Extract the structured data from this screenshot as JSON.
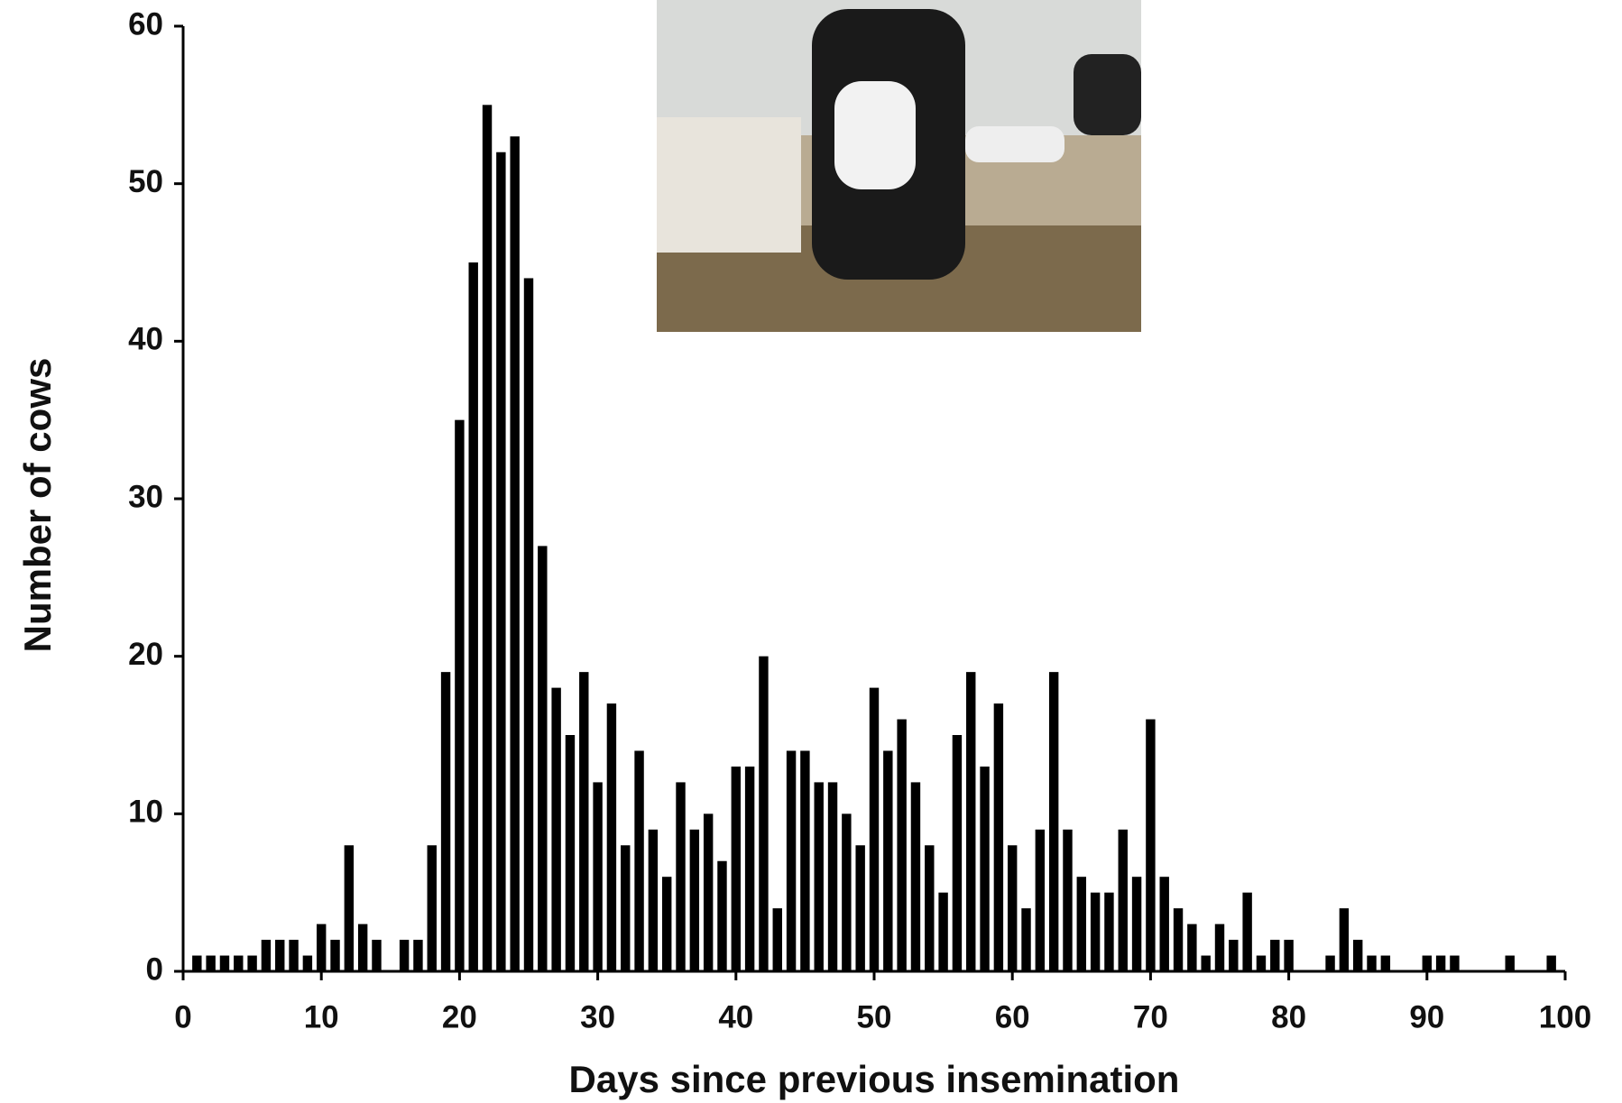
{
  "chart_data": {
    "type": "bar",
    "x_label": "Days since previous insemination",
    "y_label": "Number of cows",
    "x": [
      1,
      2,
      3,
      4,
      5,
      6,
      7,
      8,
      9,
      10,
      11,
      12,
      13,
      14,
      15,
      16,
      17,
      18,
      19,
      20,
      21,
      22,
      23,
      24,
      25,
      26,
      27,
      28,
      29,
      30,
      31,
      32,
      33,
      34,
      35,
      36,
      37,
      38,
      39,
      40,
      41,
      42,
      43,
      44,
      45,
      46,
      47,
      48,
      49,
      50,
      51,
      52,
      53,
      54,
      55,
      56,
      57,
      58,
      59,
      60,
      61,
      62,
      63,
      64,
      65,
      66,
      67,
      68,
      69,
      70,
      71,
      72,
      73,
      74,
      75,
      76,
      77,
      78,
      79,
      80,
      81,
      82,
      83,
      84,
      85,
      86,
      87,
      88,
      89,
      90,
      91,
      92,
      93,
      94,
      95,
      96,
      97,
      98,
      99
    ],
    "values": [
      1,
      1,
      1,
      1,
      1,
      2,
      2,
      2,
      1,
      3,
      2,
      8,
      3,
      2,
      0,
      2,
      2,
      8,
      19,
      35,
      45,
      55,
      52,
      53,
      44,
      27,
      18,
      15,
      19,
      12,
      17,
      8,
      14,
      9,
      6,
      12,
      9,
      10,
      7,
      13,
      13,
      20,
      4,
      14,
      14,
      12,
      12,
      10,
      8,
      18,
      14,
      16,
      12,
      8,
      5,
      15,
      19,
      13,
      17,
      8,
      4,
      9,
      19,
      9,
      6,
      5,
      5,
      9,
      6,
      16,
      6,
      4,
      3,
      1,
      3,
      2,
      5,
      1,
      2,
      2,
      0,
      0,
      1,
      4,
      2,
      1,
      1,
      0,
      0,
      1,
      1,
      1,
      0,
      0,
      0,
      1,
      0,
      0,
      1
    ],
    "color": "#000000",
    "xlim": [
      0,
      100
    ],
    "xticks": [
      0,
      10,
      20,
      30,
      40,
      50,
      60,
      70,
      80,
      90,
      100
    ],
    "ylim": [
      0,
      60
    ],
    "yticks": [
      0,
      10,
      20,
      30,
      40,
      50,
      60
    ]
  }
}
